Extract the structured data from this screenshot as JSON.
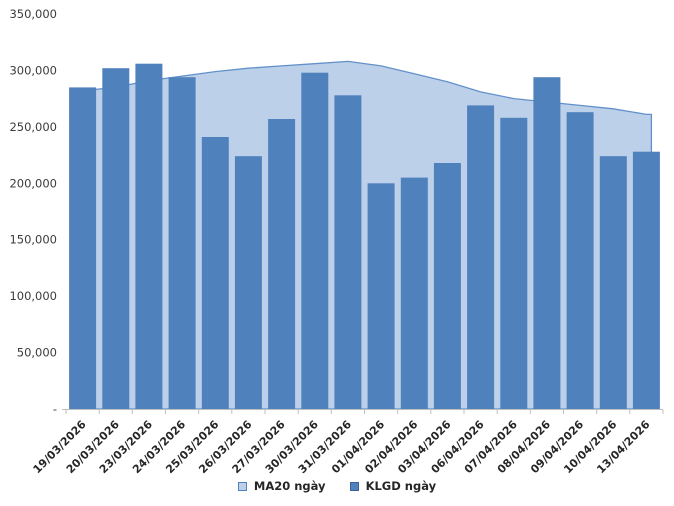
{
  "chart_data": {
    "type": "combo",
    "title": "",
    "xlabel": "",
    "ylabel": "",
    "categories": [
      "19/03/2026",
      "20/03/2026",
      "23/03/2026",
      "24/03/2026",
      "25/03/2026",
      "26/03/2026",
      "27/03/2026",
      "30/03/2026",
      "31/03/2026",
      "01/04/2026",
      "02/04/2026",
      "03/04/2026",
      "06/04/2026",
      "07/04/2026",
      "08/04/2026",
      "09/04/2026",
      "10/04/2026",
      "13/04/2026"
    ],
    "series": [
      {
        "name": "MA20 ngày",
        "type": "area",
        "values": [
          282000,
          285000,
          291000,
          295000,
          299000,
          302000,
          304000,
          306000,
          308000,
          304000,
          297000,
          290000,
          281000,
          275000,
          272000,
          269000,
          266000,
          261000
        ],
        "fill_color": "#bdd0e9",
        "line_color": "#6291ca"
      },
      {
        "name": "KLGD ngày",
        "type": "bar",
        "values": [
          285000,
          302000,
          306000,
          294000,
          241000,
          224000,
          257000,
          298000,
          278000,
          200000,
          205000,
          218000,
          269000,
          258000,
          294000,
          263000,
          224000,
          228000
        ],
        "fill_color": "#4f81bd",
        "border_color": "#3a6496"
      }
    ],
    "ylim": [
      0,
      350000
    ],
    "ytick_step": 50000,
    "ytick_labels": [
      "-",
      "50,000",
      "100,000",
      "150,000",
      "200,000",
      "250,000",
      "300,000",
      "350,000"
    ],
    "grid": false,
    "legend_position": "bottom"
  },
  "colors": {
    "background": "#ffffff",
    "axis_line": "#bfbfbf",
    "ytick_text": "#3c3c3c",
    "xtick_text": "#262626"
  }
}
